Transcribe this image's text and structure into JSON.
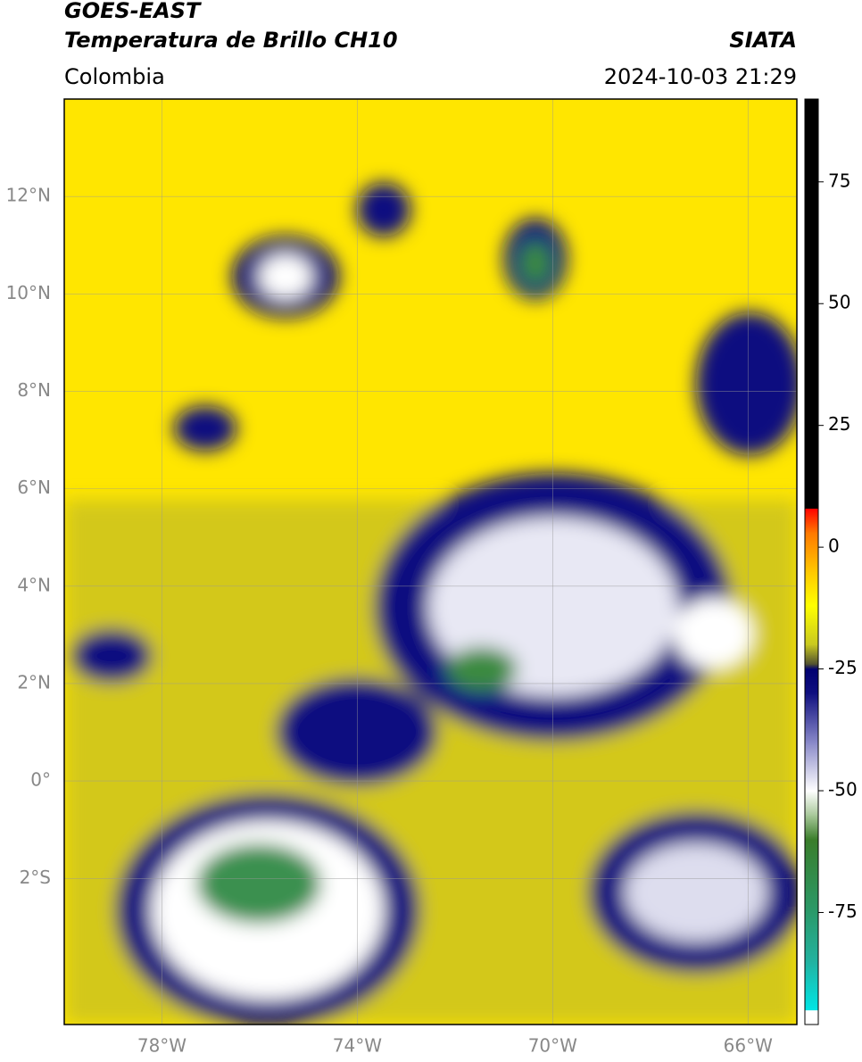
{
  "header": {
    "title": "GOES-EAST",
    "subtitle": "Temperatura de Brillo CH10",
    "source": "SIATA",
    "region": "Colombia",
    "datetime": "2024-10-03 21:29"
  },
  "chart_data": {
    "type": "map",
    "xlim": [
      -80,
      -65
    ],
    "ylim": [
      -5,
      14
    ],
    "xticks": [
      {
        "value": -78,
        "label": "78°W"
      },
      {
        "value": -74,
        "label": "74°W"
      },
      {
        "value": -70,
        "label": "70°W"
      },
      {
        "value": -66,
        "label": "66°W"
      }
    ],
    "yticks": [
      {
        "value": -2,
        "label": "2°S"
      },
      {
        "value": 0,
        "label": "0°"
      },
      {
        "value": 2,
        "label": "2°N"
      },
      {
        "value": 4,
        "label": "4°N"
      },
      {
        "value": 6,
        "label": "6°N"
      },
      {
        "value": 8,
        "label": "8°N"
      },
      {
        "value": 10,
        "label": "10°N"
      },
      {
        "value": 12,
        "label": "12°N"
      }
    ],
    "grid": true,
    "colorbar": {
      "clim": [
        -98,
        92
      ],
      "ticks": [
        -75,
        -50,
        -25,
        0,
        25,
        50,
        75
      ],
      "colormap": [
        [
          -98,
          "#ffffff"
        ],
        [
          -95,
          "#ffffff"
        ],
        [
          -95,
          "#00e5e5"
        ],
        [
          -85,
          "#22b2a0"
        ],
        [
          -75,
          "#2a9a6a"
        ],
        [
          -60,
          "#3a7d2a"
        ],
        [
          -55,
          "#a8c89a"
        ],
        [
          -50,
          "#ffffff"
        ],
        [
          -40,
          "#8888c8"
        ],
        [
          -30,
          "#101080"
        ],
        [
          -25,
          "#000070"
        ],
        [
          -24,
          "#505030"
        ],
        [
          -20,
          "#c8c820"
        ],
        [
          -12,
          "#ffff00"
        ],
        [
          -5,
          "#ffc800"
        ],
        [
          3,
          "#ff7800"
        ],
        [
          8,
          "#ff0000"
        ],
        [
          8,
          "#000000"
        ],
        [
          92,
          "#000000"
        ]
      ]
    }
  }
}
